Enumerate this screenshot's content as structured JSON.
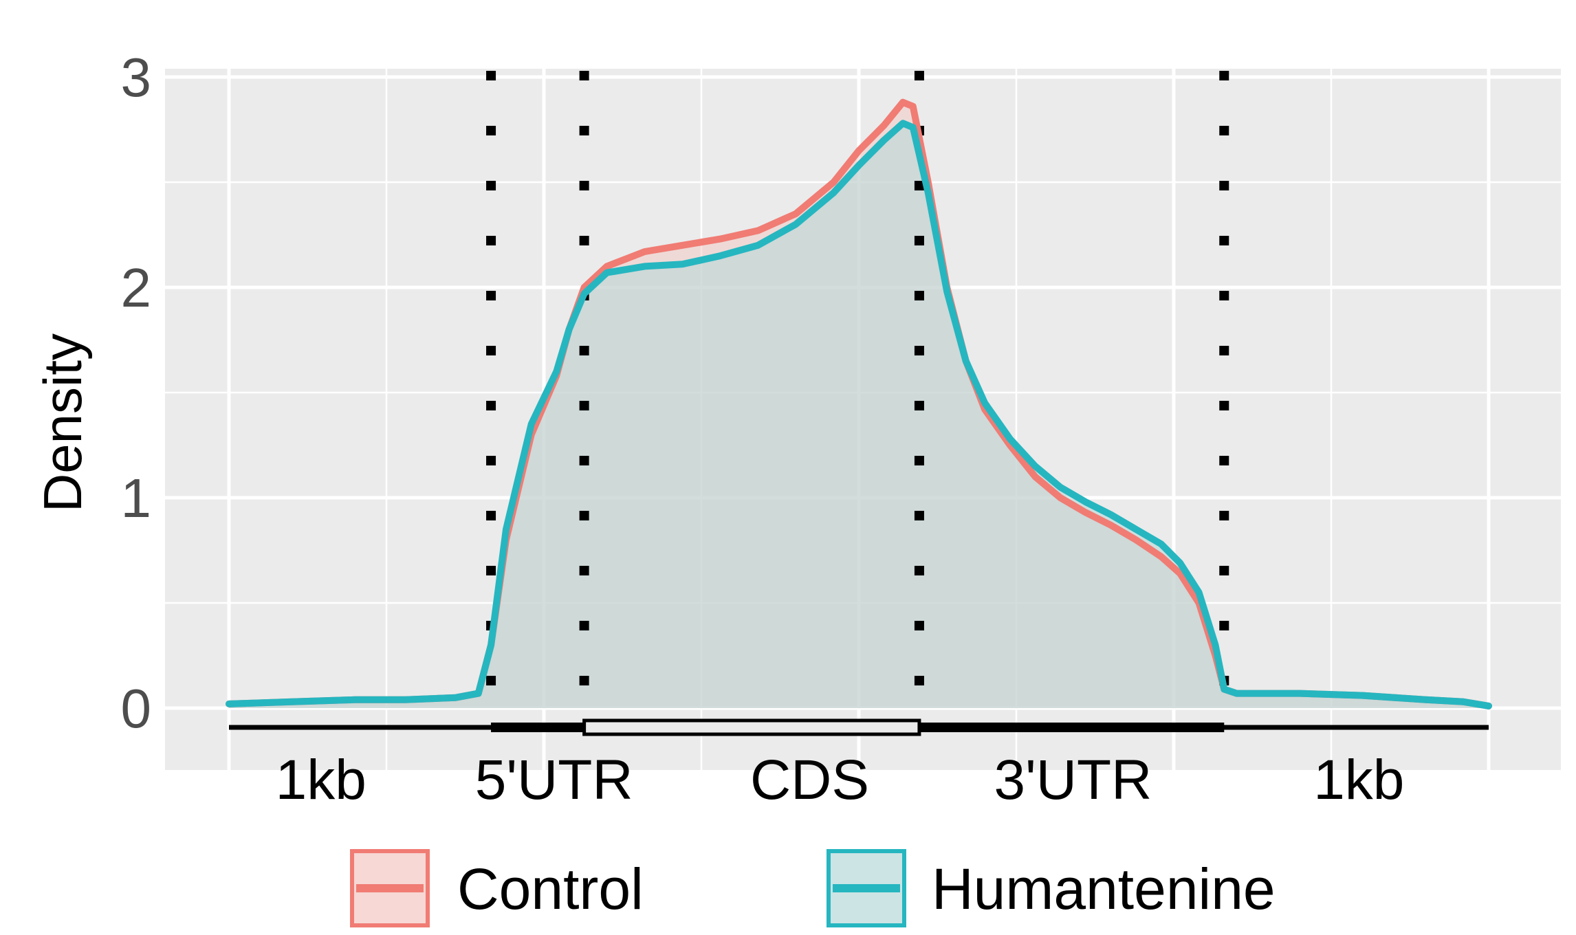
{
  "chart_data": {
    "type": "area",
    "title": "",
    "xlabel": "",
    "ylabel": "Density",
    "ylim": [
      0,
      3
    ],
    "y_ticks": [
      0,
      1,
      2,
      3
    ],
    "y_tick_labels": [
      "0",
      "1",
      "2",
      "3"
    ],
    "grid": true,
    "background": "#ebebeb",
    "x_domain": [
      0,
      100
    ],
    "region_boundaries": [
      20.8,
      28.2,
      54.8,
      79.0
    ],
    "region_labels": [
      "1kb",
      "5'UTR",
      "CDS",
      "3'UTR",
      "1kb"
    ],
    "legend_position": "bottom",
    "series": [
      {
        "name": "Control",
        "color": "#f07c74",
        "fill": "#f4c7c2",
        "points": [
          [
            0,
            0.02
          ],
          [
            5,
            0.03
          ],
          [
            10,
            0.04
          ],
          [
            14,
            0.04
          ],
          [
            18,
            0.05
          ],
          [
            19.8,
            0.07
          ],
          [
            20.8,
            0.3
          ],
          [
            22,
            0.8
          ],
          [
            24,
            1.3
          ],
          [
            26,
            1.58
          ],
          [
            27,
            1.8
          ],
          [
            28.2,
            2.0
          ],
          [
            30,
            2.1
          ],
          [
            33,
            2.17
          ],
          [
            36,
            2.2
          ],
          [
            39,
            2.23
          ],
          [
            42,
            2.27
          ],
          [
            45,
            2.35
          ],
          [
            48,
            2.5
          ],
          [
            50,
            2.65
          ],
          [
            52,
            2.77
          ],
          [
            53.5,
            2.88
          ],
          [
            54.3,
            2.86
          ],
          [
            55.5,
            2.5
          ],
          [
            57,
            2.0
          ],
          [
            58.5,
            1.65
          ],
          [
            60,
            1.42
          ],
          [
            62,
            1.25
          ],
          [
            64,
            1.1
          ],
          [
            66,
            1.0
          ],
          [
            68,
            0.93
          ],
          [
            70,
            0.87
          ],
          [
            72,
            0.8
          ],
          [
            74,
            0.72
          ],
          [
            75.5,
            0.64
          ],
          [
            77,
            0.5
          ],
          [
            78.3,
            0.25
          ],
          [
            79,
            0.09
          ],
          [
            80,
            0.07
          ],
          [
            85,
            0.07
          ],
          [
            90,
            0.06
          ],
          [
            95,
            0.04
          ],
          [
            98,
            0.03
          ],
          [
            100,
            0.01
          ]
        ]
      },
      {
        "name": "Humantenine",
        "color": "#26b6c0",
        "fill": "#b7d8d8",
        "points": [
          [
            0,
            0.02
          ],
          [
            5,
            0.03
          ],
          [
            10,
            0.04
          ],
          [
            14,
            0.04
          ],
          [
            18,
            0.05
          ],
          [
            19.8,
            0.07
          ],
          [
            20.8,
            0.3
          ],
          [
            22,
            0.85
          ],
          [
            24,
            1.35
          ],
          [
            26,
            1.6
          ],
          [
            27,
            1.8
          ],
          [
            28.2,
            1.97
          ],
          [
            30,
            2.07
          ],
          [
            33,
            2.1
          ],
          [
            36,
            2.11
          ],
          [
            39,
            2.15
          ],
          [
            42,
            2.2
          ],
          [
            45,
            2.3
          ],
          [
            48,
            2.45
          ],
          [
            50,
            2.58
          ],
          [
            52,
            2.7
          ],
          [
            53.5,
            2.78
          ],
          [
            54.3,
            2.76
          ],
          [
            55.5,
            2.45
          ],
          [
            57,
            1.98
          ],
          [
            58.5,
            1.65
          ],
          [
            60,
            1.45
          ],
          [
            62,
            1.28
          ],
          [
            64,
            1.15
          ],
          [
            66,
            1.05
          ],
          [
            68,
            0.98
          ],
          [
            70,
            0.92
          ],
          [
            72,
            0.85
          ],
          [
            74,
            0.78
          ],
          [
            75.5,
            0.69
          ],
          [
            77,
            0.55
          ],
          [
            78.3,
            0.3
          ],
          [
            79,
            0.09
          ],
          [
            80,
            0.07
          ],
          [
            85,
            0.07
          ],
          [
            90,
            0.06
          ],
          [
            95,
            0.04
          ],
          [
            98,
            0.03
          ],
          [
            100,
            0.01
          ]
        ]
      }
    ]
  }
}
